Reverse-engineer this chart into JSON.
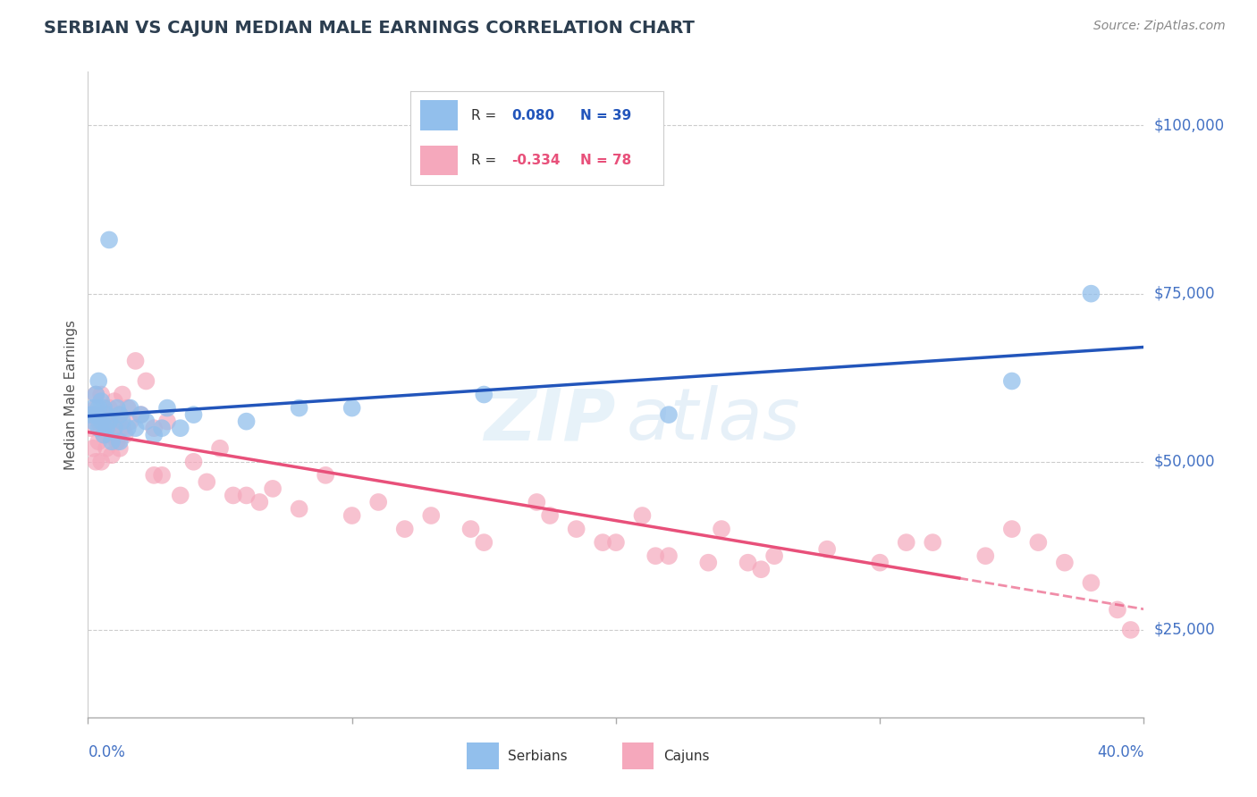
{
  "title": "SERBIAN VS CAJUN MEDIAN MALE EARNINGS CORRELATION CHART",
  "source": "Source: ZipAtlas.com",
  "ylabel": "Median Male Earnings",
  "ytick_labels": [
    "$25,000",
    "$50,000",
    "$75,000",
    "$100,000"
  ],
  "ytick_values": [
    25000,
    50000,
    75000,
    100000
  ],
  "xlim": [
    0.0,
    0.4
  ],
  "ylim": [
    12000,
    108000
  ],
  "serbian_R": "0.080",
  "serbian_N": "39",
  "cajun_R": "-0.334",
  "cajun_N": "78",
  "serbian_color": "#92bfec",
  "cajun_color": "#f5a8bc",
  "serbian_line_color": "#2255bb",
  "cajun_line_color": "#e8507a",
  "watermark_zip": "ZIP",
  "watermark_atlas": "atlas",
  "serbian_points_x": [
    0.001,
    0.002,
    0.003,
    0.003,
    0.004,
    0.004,
    0.005,
    0.005,
    0.006,
    0.006,
    0.007,
    0.007,
    0.008,
    0.008,
    0.009,
    0.01,
    0.011,
    0.012,
    0.012,
    0.013,
    0.015,
    0.016,
    0.018,
    0.02,
    0.022,
    0.025,
    0.028,
    0.03,
    0.035,
    0.04,
    0.06,
    0.08,
    0.1,
    0.15,
    0.22,
    0.35,
    0.38,
    0.002,
    0.004
  ],
  "serbian_points_y": [
    57000,
    58000,
    60000,
    57000,
    62000,
    55000,
    56000,
    59000,
    54000,
    58000,
    55000,
    57000,
    56000,
    83000,
    53000,
    55000,
    58000,
    57000,
    53000,
    56000,
    55000,
    58000,
    55000,
    57000,
    56000,
    54000,
    55000,
    58000,
    55000,
    57000,
    56000,
    58000,
    58000,
    60000,
    57000,
    62000,
    75000,
    56000,
    58000
  ],
  "cajun_points_x": [
    0.001,
    0.002,
    0.002,
    0.003,
    0.003,
    0.004,
    0.004,
    0.005,
    0.005,
    0.006,
    0.006,
    0.007,
    0.007,
    0.008,
    0.008,
    0.009,
    0.01,
    0.01,
    0.011,
    0.012,
    0.012,
    0.013,
    0.014,
    0.015,
    0.016,
    0.018,
    0.02,
    0.022,
    0.025,
    0.03,
    0.035,
    0.04,
    0.05,
    0.06,
    0.07,
    0.08,
    0.1,
    0.11,
    0.13,
    0.15,
    0.17,
    0.2,
    0.22,
    0.24,
    0.26,
    0.28,
    0.3,
    0.32,
    0.34,
    0.36,
    0.38,
    0.39,
    0.003,
    0.005,
    0.007,
    0.009,
    0.011,
    0.013,
    0.025,
    0.045,
    0.065,
    0.09,
    0.12,
    0.145,
    0.175,
    0.195,
    0.215,
    0.235,
    0.255,
    0.185,
    0.21,
    0.25,
    0.31,
    0.35,
    0.37,
    0.395,
    0.028,
    0.055
  ],
  "cajun_points_y": [
    55000,
    57000,
    52000,
    58000,
    50000,
    56000,
    53000,
    55000,
    50000,
    54000,
    57000,
    55000,
    52000,
    58000,
    54000,
    56000,
    55000,
    59000,
    53000,
    57000,
    52000,
    55000,
    54000,
    58000,
    56000,
    65000,
    57000,
    62000,
    55000,
    56000,
    45000,
    50000,
    52000,
    45000,
    46000,
    43000,
    42000,
    44000,
    42000,
    38000,
    44000,
    38000,
    36000,
    40000,
    36000,
    37000,
    35000,
    38000,
    36000,
    38000,
    32000,
    28000,
    60000,
    60000,
    56000,
    51000,
    56000,
    60000,
    48000,
    47000,
    44000,
    48000,
    40000,
    40000,
    42000,
    38000,
    36000,
    35000,
    34000,
    40000,
    42000,
    35000,
    38000,
    40000,
    35000,
    25000,
    48000,
    45000
  ]
}
